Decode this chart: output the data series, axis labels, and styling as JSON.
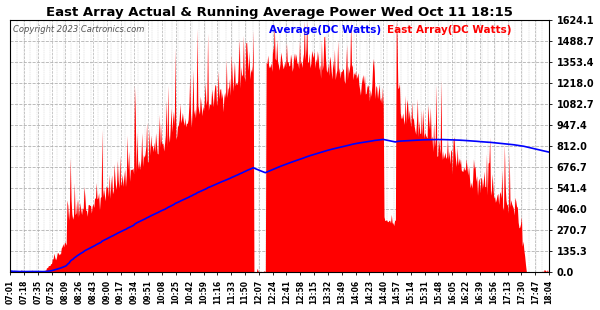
{
  "title": "East Array Actual & Running Average Power Wed Oct 11 18:15",
  "copyright": "Copyright 2023 Cartronics.com",
  "legend_avg": "Average(DC Watts)",
  "legend_east": "East Array(DC Watts)",
  "ymin": 0.0,
  "ymax": 1624.1,
  "yticks": [
    0.0,
    135.3,
    270.7,
    406.0,
    541.4,
    676.7,
    812.0,
    947.4,
    1082.7,
    1218.0,
    1353.4,
    1488.7,
    1624.1
  ],
  "bg_color": "#ffffff",
  "grid_color": "#aaaaaa",
  "bar_color": "#ff0000",
  "avg_color": "#0000ff",
  "title_color": "#000000",
  "copyright_color": "#000000",
  "legend_avg_color": "#0000ff",
  "legend_east_color": "#ff0000",
  "x_labels": [
    "07:01",
    "07:18",
    "07:35",
    "07:52",
    "08:09",
    "08:26",
    "08:43",
    "09:00",
    "09:17",
    "09:34",
    "09:51",
    "10:08",
    "10:25",
    "10:42",
    "10:59",
    "11:16",
    "11:33",
    "11:50",
    "12:07",
    "12:24",
    "12:41",
    "12:58",
    "13:15",
    "13:32",
    "13:49",
    "14:06",
    "14:23",
    "14:40",
    "14:57",
    "15:14",
    "15:31",
    "15:48",
    "16:05",
    "16:22",
    "16:39",
    "16:56",
    "17:13",
    "17:30",
    "17:47",
    "18:04"
  ]
}
